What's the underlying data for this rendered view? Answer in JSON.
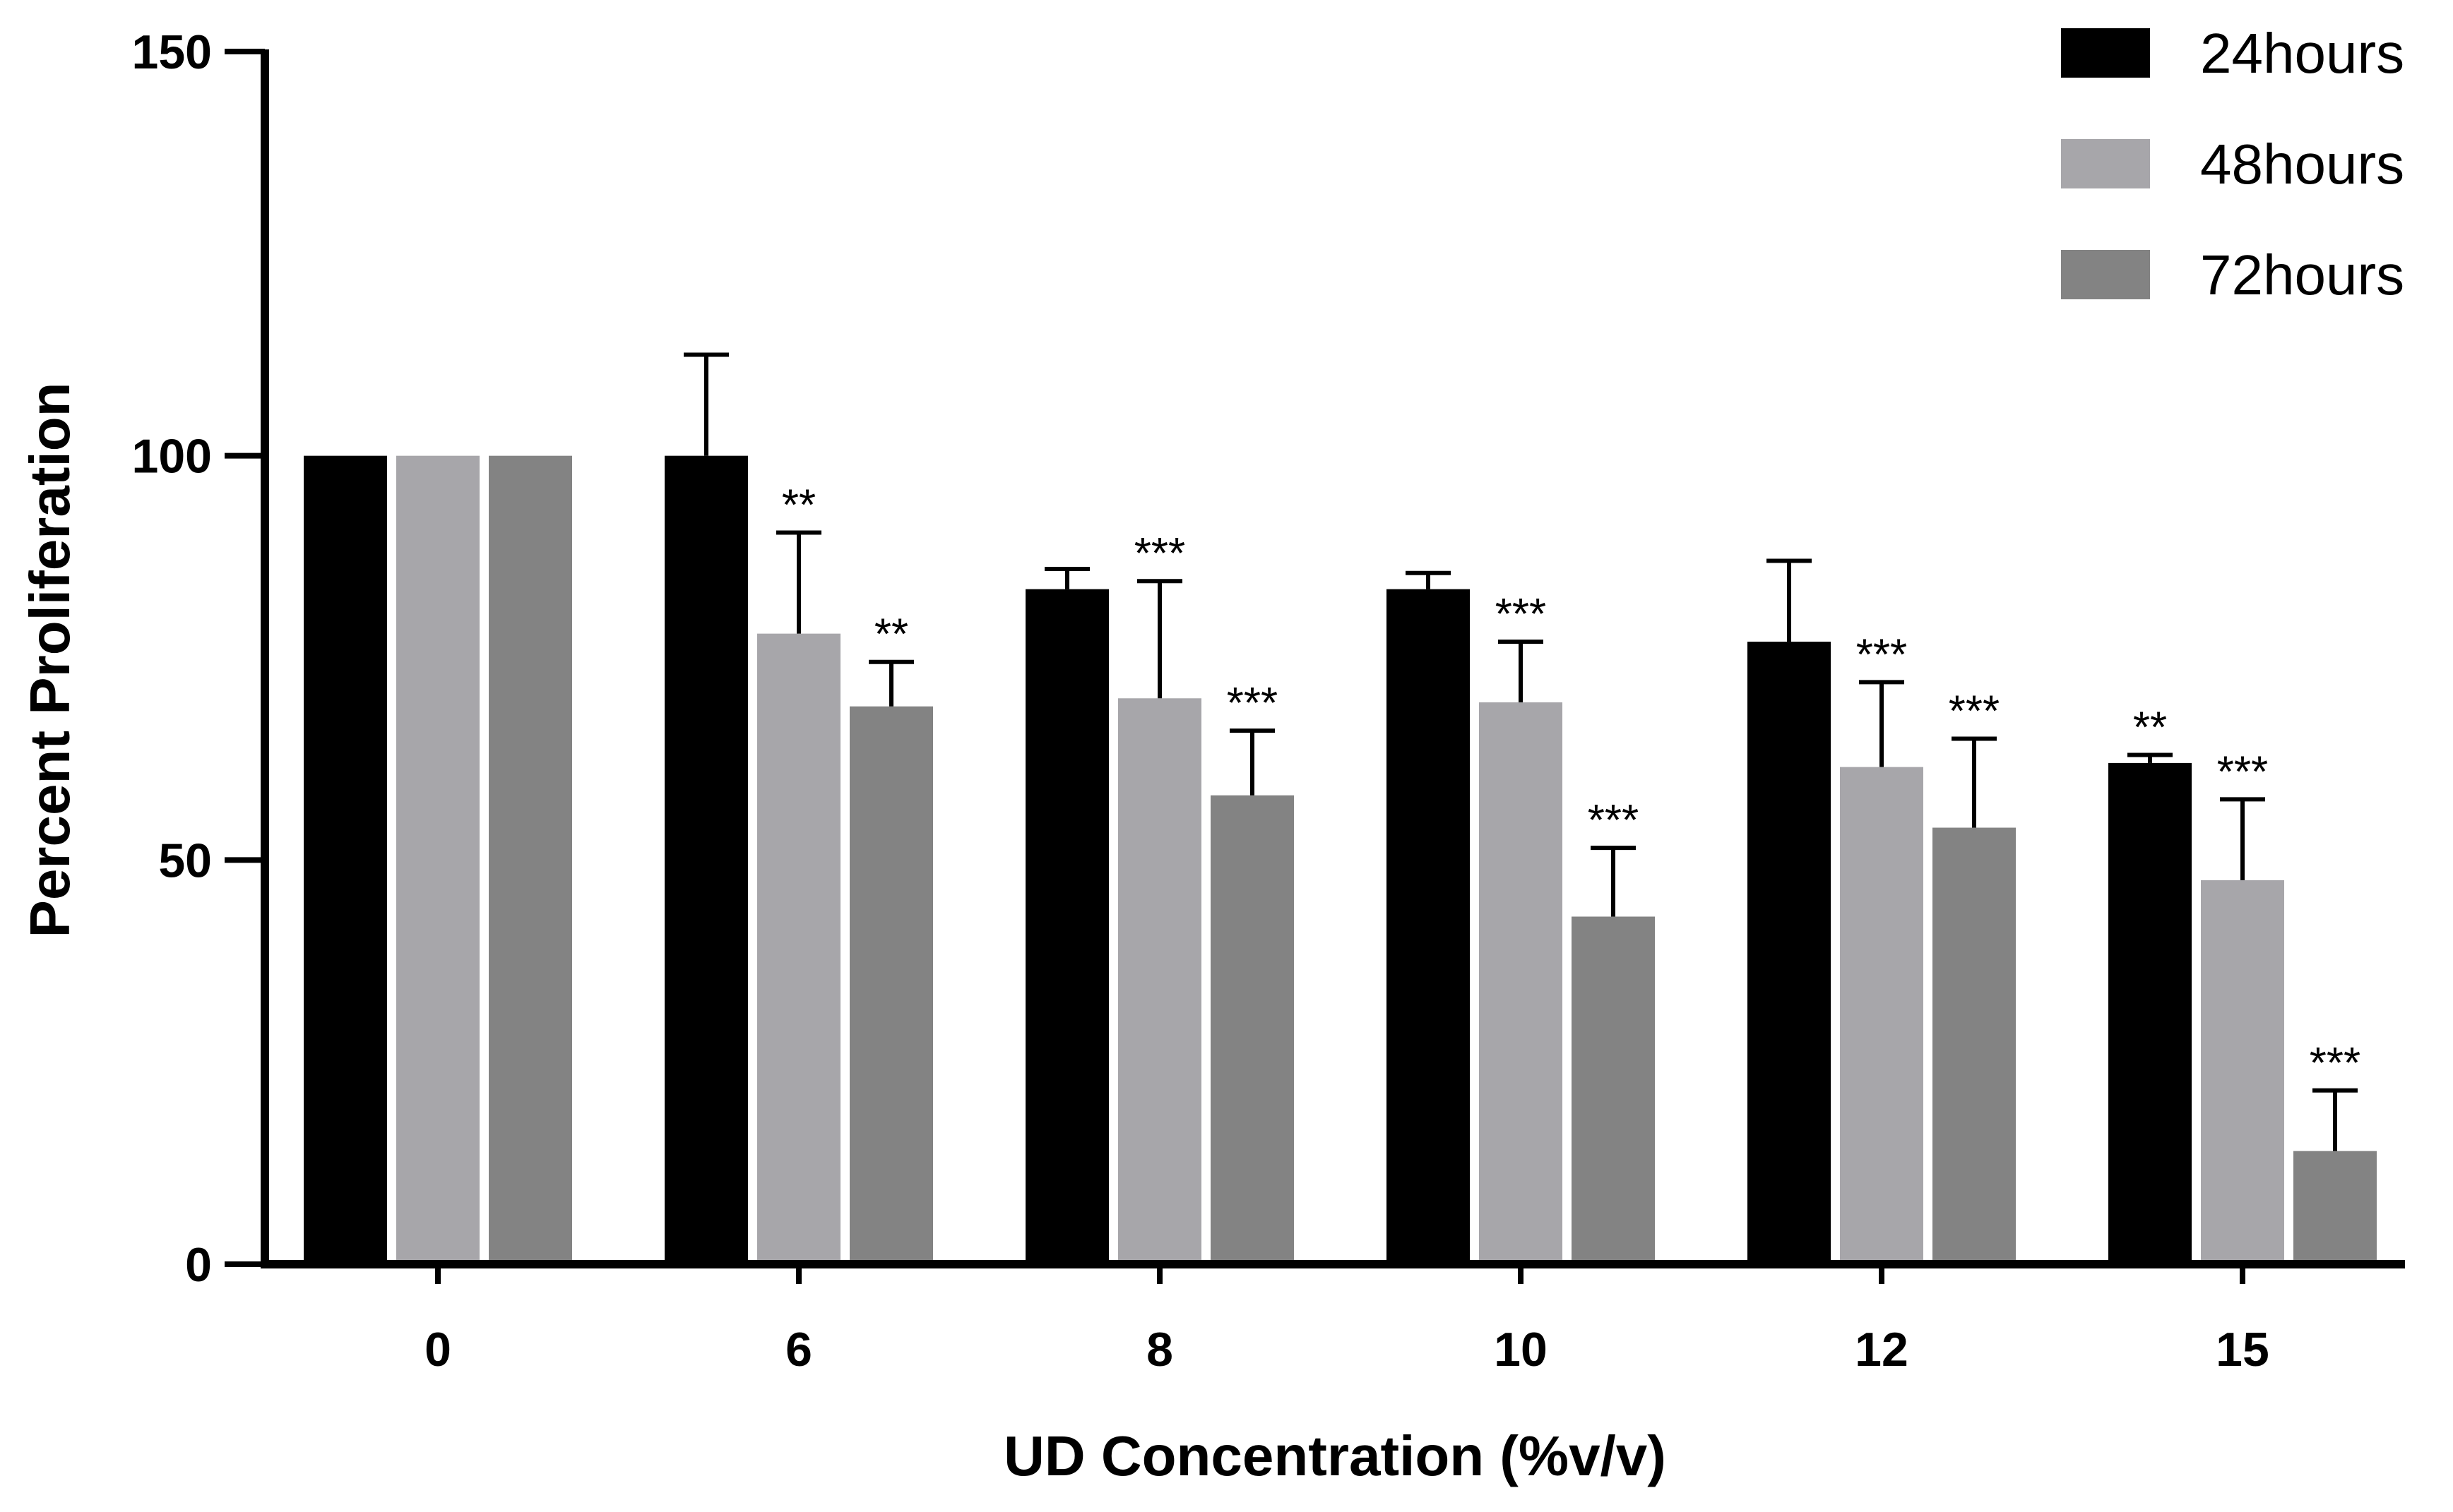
{
  "chart_data": {
    "type": "bar",
    "xlabel": "UD Concentration (%v/v)",
    "ylabel": "Percent Proliferation",
    "ylim": [
      0,
      150
    ],
    "yticks": [
      0,
      50,
      100,
      150
    ],
    "categories": [
      "0",
      "6",
      "8",
      "10",
      "12",
      "15"
    ],
    "legend_position": "top-right",
    "series": [
      {
        "name": "24hours",
        "color": "#000000",
        "values": [
          100,
          100,
          83.5,
          83.5,
          77,
          62
        ],
        "errors": [
          0,
          12.5,
          2.5,
          2,
          10,
          1
        ],
        "significance": [
          "",
          "",
          "",
          "",
          "",
          "**"
        ]
      },
      {
        "name": "48hours",
        "color": "#a7a6aa",
        "values": [
          100,
          78,
          70,
          69.5,
          61.5,
          47.5
        ],
        "errors": [
          0,
          12.5,
          14.5,
          7.5,
          10.5,
          10
        ],
        "significance": [
          "",
          "**",
          "***",
          "***",
          "***",
          "***"
        ]
      },
      {
        "name": "72hours",
        "color": "#838383",
        "values": [
          100,
          69,
          58,
          43,
          54,
          14
        ],
        "errors": [
          0,
          5.5,
          8,
          8.5,
          11,
          7.5
        ],
        "significance": [
          "",
          "**",
          "***",
          "***",
          "***",
          "***"
        ]
      }
    ]
  }
}
